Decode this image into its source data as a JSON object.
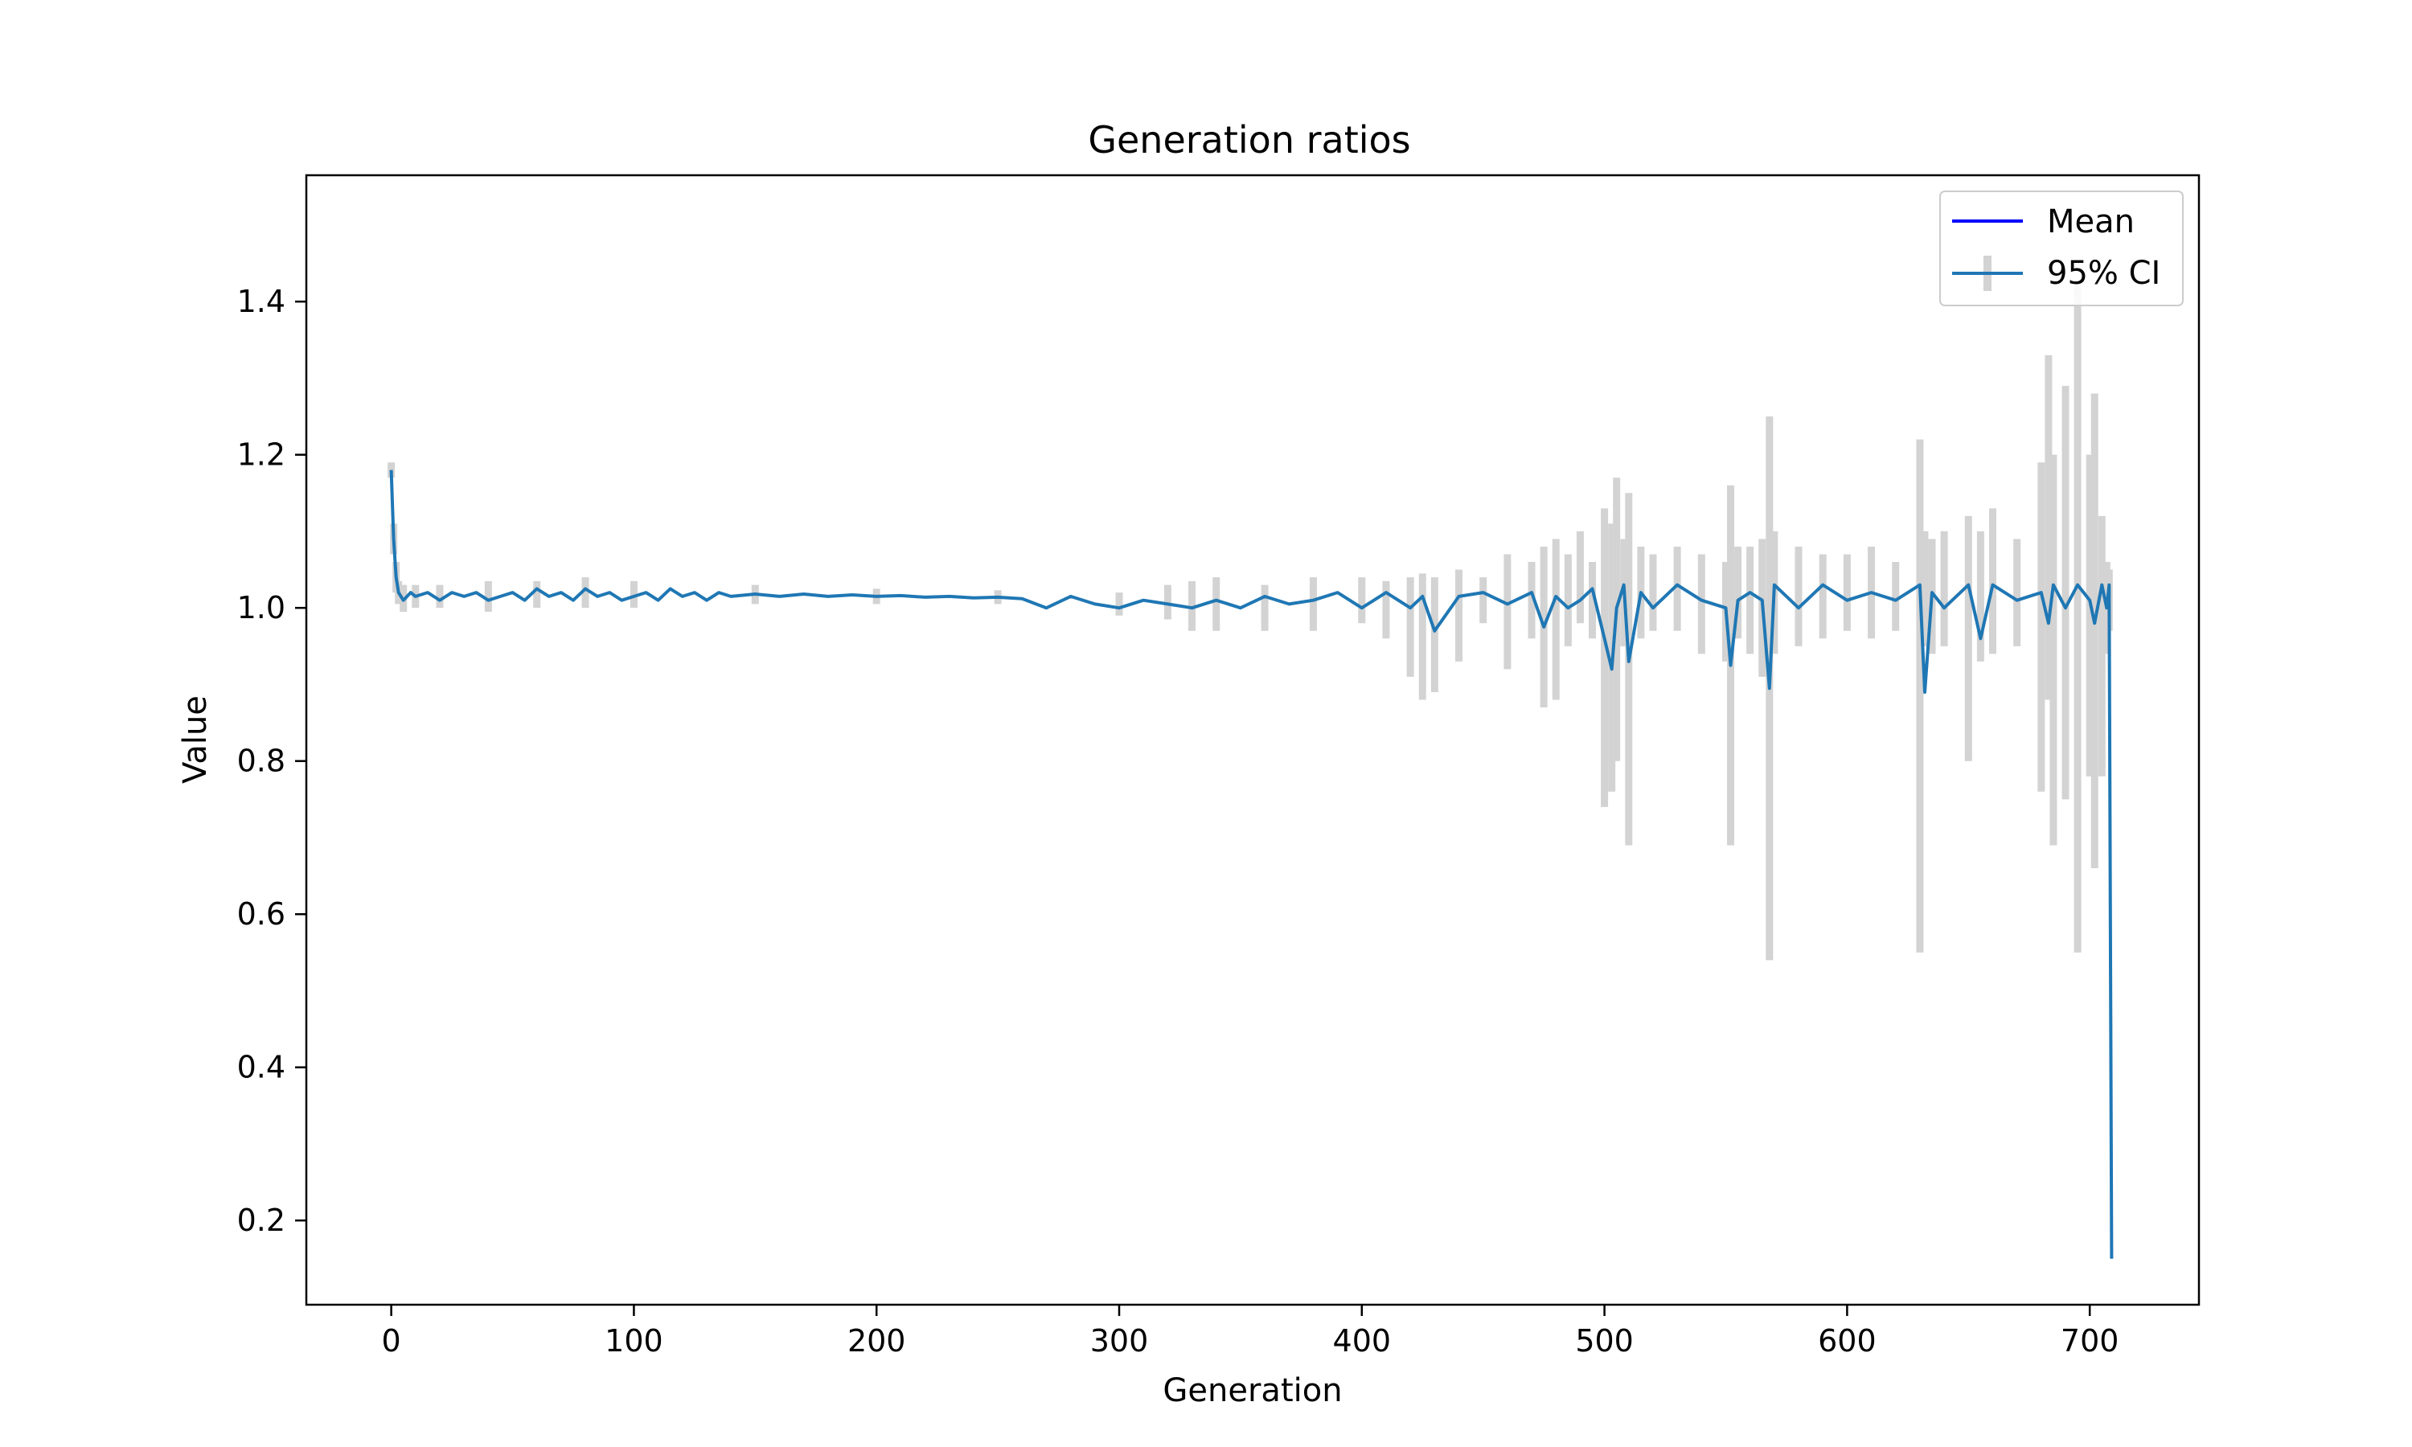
{
  "chart_data": {
    "type": "line",
    "title": "Generation ratios",
    "xlabel": "Generation",
    "ylabel": "Value",
    "xlim": [
      -35,
      745
    ],
    "ylim": [
      0.09,
      1.565
    ],
    "xticks": [
      0,
      100,
      200,
      300,
      400,
      500,
      600,
      700
    ],
    "yticks": [
      0.2,
      0.4,
      0.6,
      0.8,
      1.0,
      1.2,
      1.4
    ],
    "xtick_labels": [
      "0",
      "100",
      "200",
      "300",
      "400",
      "500",
      "600",
      "700"
    ],
    "ytick_labels": [
      "0.2",
      "0.4",
      "0.6",
      "0.8",
      "1.0",
      "1.2",
      "1.4"
    ],
    "grid": false,
    "legend_position": "top-right",
    "legend": [
      {
        "label": "Mean",
        "color": "#0000ff"
      },
      {
        "label": "95% CI",
        "color": "#1f77b4"
      }
    ],
    "colors": {
      "mean": "#1f77b4",
      "ci": "#d3d3d3",
      "legend_mean": "#0000ff"
    },
    "series": [
      {
        "name": "Mean",
        "x": [
          0,
          1,
          2,
          3,
          4,
          5,
          8,
          10,
          15,
          20,
          25,
          30,
          35,
          40,
          45,
          50,
          55,
          60,
          65,
          70,
          75,
          80,
          85,
          90,
          95,
          100,
          105,
          110,
          115,
          120,
          125,
          130,
          135,
          140,
          150,
          160,
          170,
          180,
          190,
          200,
          210,
          220,
          230,
          240,
          250,
          260,
          270,
          280,
          290,
          300,
          310,
          320,
          330,
          340,
          350,
          360,
          370,
          380,
          390,
          400,
          410,
          420,
          425,
          430,
          440,
          450,
          460,
          470,
          475,
          480,
          485,
          490,
          495,
          500,
          503,
          505,
          508,
          510,
          515,
          520,
          530,
          540,
          550,
          552,
          555,
          560,
          565,
          568,
          570,
          580,
          590,
          600,
          610,
          620,
          630,
          632,
          635,
          640,
          650,
          655,
          660,
          670,
          680,
          683,
          685,
          690,
          695,
          700,
          702,
          705,
          707,
          708,
          709
        ],
        "y": [
          1.18,
          1.09,
          1.04,
          1.02,
          1.015,
          1.01,
          1.02,
          1.015,
          1.02,
          1.01,
          1.02,
          1.015,
          1.02,
          1.01,
          1.015,
          1.02,
          1.01,
          1.025,
          1.015,
          1.02,
          1.01,
          1.025,
          1.015,
          1.02,
          1.01,
          1.015,
          1.02,
          1.01,
          1.025,
          1.015,
          1.02,
          1.01,
          1.02,
          1.015,
          1.018,
          1.015,
          1.018,
          1.015,
          1.017,
          1.015,
          1.016,
          1.014,
          1.015,
          1.013,
          1.014,
          1.012,
          1.0,
          1.015,
          1.005,
          1.0,
          1.01,
          1.005,
          1.0,
          1.01,
          1.0,
          1.015,
          1.005,
          1.01,
          1.02,
          1.0,
          1.02,
          1.0,
          1.015,
          0.97,
          1.015,
          1.02,
          1.005,
          1.02,
          0.975,
          1.015,
          1.0,
          1.01,
          1.025,
          0.96,
          0.92,
          1.0,
          1.03,
          0.93,
          1.02,
          1.0,
          1.03,
          1.01,
          1.0,
          0.925,
          1.01,
          1.02,
          1.01,
          0.895,
          1.03,
          1.0,
          1.03,
          1.01,
          1.02,
          1.01,
          1.03,
          0.89,
          1.02,
          1.0,
          1.03,
          0.96,
          1.03,
          1.01,
          1.02,
          0.98,
          1.03,
          1.0,
          1.03,
          1.01,
          0.98,
          1.03,
          1.0,
          1.03,
          0.15
        ]
      },
      {
        "name": "95% CI",
        "x": [
          0,
          1,
          2,
          3,
          5,
          10,
          20,
          40,
          60,
          80,
          100,
          150,
          200,
          250,
          300,
          320,
          330,
          340,
          360,
          380,
          400,
          410,
          420,
          425,
          430,
          440,
          450,
          460,
          470,
          475,
          480,
          485,
          490,
          495,
          500,
          503,
          505,
          508,
          510,
          515,
          520,
          530,
          540,
          550,
          552,
          555,
          560,
          565,
          568,
          570,
          580,
          590,
          600,
          610,
          620,
          630,
          632,
          635,
          640,
          650,
          655,
          660,
          670,
          680,
          683,
          685,
          690,
          695,
          700,
          702,
          705,
          707,
          708
        ],
        "lower": [
          1.17,
          1.07,
          1.02,
          1.005,
          0.995,
          1.0,
          1.0,
          0.995,
          1.0,
          1.0,
          1.0,
          1.005,
          1.005,
          1.005,
          0.99,
          0.985,
          0.97,
          0.97,
          0.97,
          0.97,
          0.98,
          0.96,
          0.91,
          0.88,
          0.89,
          0.93,
          0.98,
          0.92,
          0.96,
          0.87,
          0.88,
          0.95,
          0.98,
          0.96,
          0.74,
          0.76,
          0.8,
          0.95,
          0.69,
          0.96,
          0.97,
          0.97,
          0.94,
          0.93,
          0.69,
          0.96,
          0.94,
          0.91,
          0.54,
          0.94,
          0.95,
          0.96,
          0.97,
          0.96,
          0.97,
          0.55,
          0.95,
          0.94,
          0.95,
          0.8,
          0.93,
          0.94,
          0.95,
          0.76,
          0.88,
          0.69,
          0.75,
          0.55,
          0.78,
          0.66,
          0.78,
          0.94,
          0.97
        ],
        "upper": [
          1.19,
          1.11,
          1.06,
          1.035,
          1.03,
          1.03,
          1.03,
          1.035,
          1.035,
          1.04,
          1.035,
          1.03,
          1.025,
          1.023,
          1.02,
          1.03,
          1.035,
          1.04,
          1.03,
          1.04,
          1.04,
          1.035,
          1.04,
          1.045,
          1.04,
          1.05,
          1.04,
          1.07,
          1.06,
          1.08,
          1.09,
          1.07,
          1.1,
          1.06,
          1.13,
          1.11,
          1.17,
          1.09,
          1.15,
          1.08,
          1.07,
          1.08,
          1.07,
          1.06,
          1.16,
          1.08,
          1.08,
          1.09,
          1.25,
          1.1,
          1.08,
          1.07,
          1.07,
          1.08,
          1.06,
          1.22,
          1.1,
          1.09,
          1.1,
          1.12,
          1.1,
          1.13,
          1.09,
          1.19,
          1.33,
          1.2,
          1.29,
          1.42,
          1.2,
          1.28,
          1.12,
          1.06,
          1.05
        ]
      }
    ]
  }
}
